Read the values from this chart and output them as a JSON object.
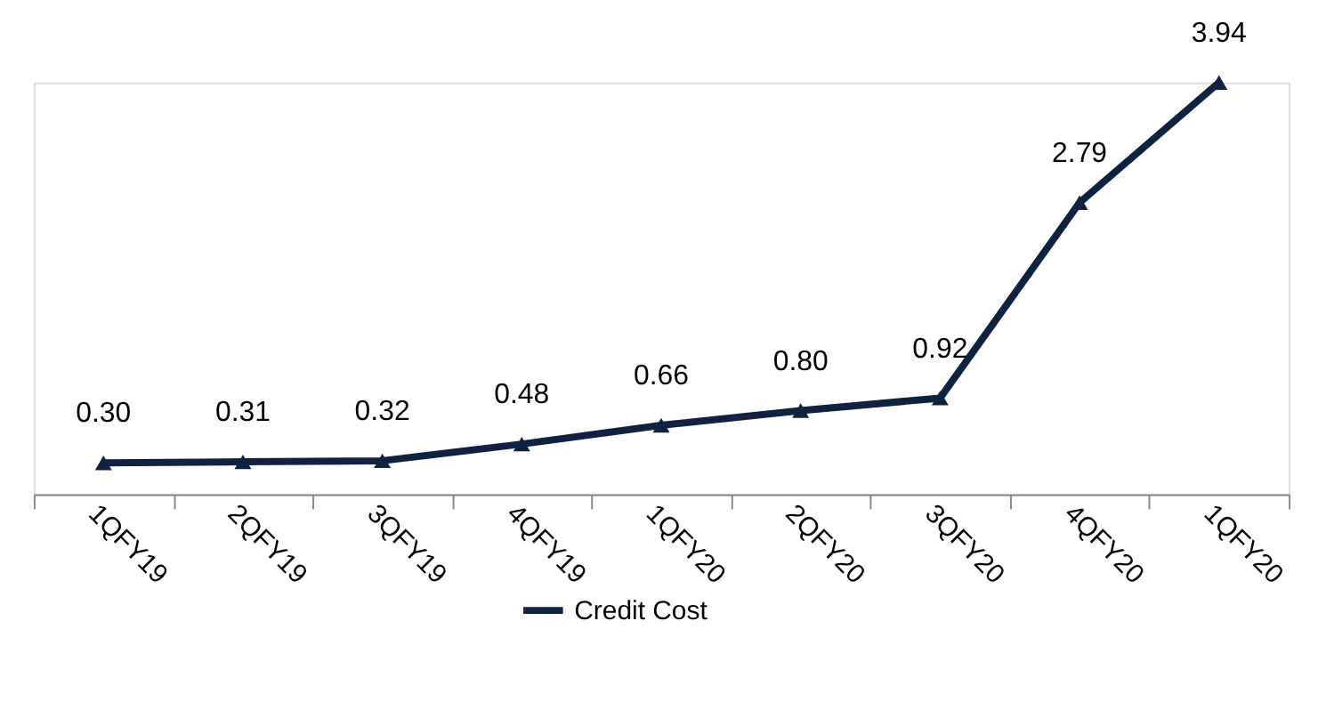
{
  "chart_data": {
    "type": "line",
    "categories": [
      "1QFY19",
      "2QFY19",
      "3QFY19",
      "4QFY19",
      "1QFY20",
      "2QFY20",
      "3QFY20",
      "4QFY20",
      "1QFY20"
    ],
    "series": [
      {
        "name": "Credit Cost",
        "color": "#0f2341",
        "values": [
          0.3,
          0.31,
          0.32,
          0.48,
          0.66,
          0.8,
          0.92,
          2.79,
          3.94
        ],
        "value_labels": [
          "0.30",
          "0.31",
          "0.32",
          "0.48",
          "0.66",
          "0.80",
          "0.92",
          "2.79",
          "3.94"
        ]
      }
    ],
    "marker": "triangle",
    "line_style": "solid",
    "legend": "bottom",
    "grid": false,
    "tick_labels": "x"
  }
}
